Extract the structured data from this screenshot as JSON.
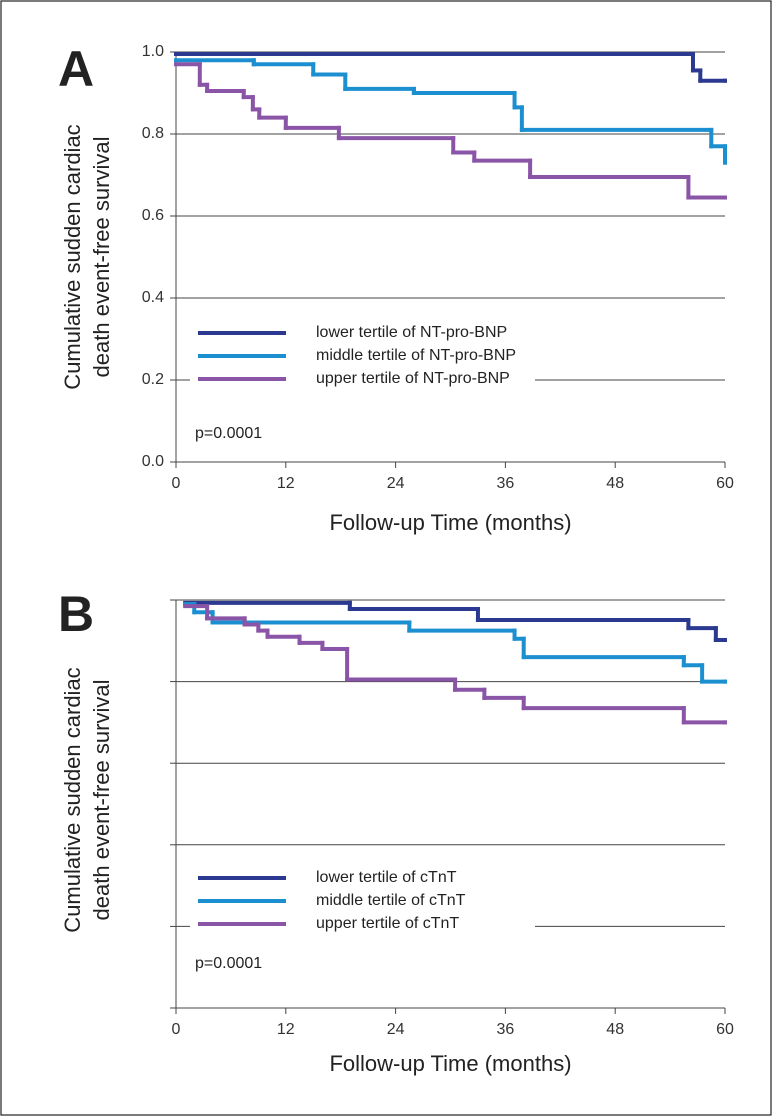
{
  "chart_data": [
    {
      "type": "step",
      "panel_label": "A",
      "ylabel": [
        "Cumulative sudden cardiac",
        "death event-free survival"
      ],
      "xlabel": "Follow-up Time (months)",
      "annotation": "p=0.0001",
      "xlim": [
        0,
        60
      ],
      "xticks": [
        0,
        12,
        24,
        36,
        48,
        60
      ],
      "ylim": [
        0,
        1
      ],
      "yticks": [
        {
          "value": 0,
          "label": "0.0"
        },
        0.2,
        0.4,
        0.6,
        0.8,
        {
          "value": 1,
          "label": "1.0"
        }
      ],
      "show_ytick_labels": true,
      "grid": true,
      "legend": "lower left",
      "series": [
        {
          "name": "lower tertile of NT-pro-BNP",
          "color": "#2b3990",
          "x": [
            0,
            56.5,
            57.3,
            60
          ],
          "values": [
            0.995,
            0.955,
            0.93,
            0.93
          ]
        },
        {
          "name": "middle tertile of NT-pro-BNP",
          "color": "#1b8fd0",
          "x": [
            0,
            8.5,
            15,
            18.5,
            26,
            37,
            37.8,
            58.5,
            60
          ],
          "values": [
            0.98,
            0.97,
            0.945,
            0.91,
            0.9,
            0.865,
            0.81,
            0.77,
            0.73
          ]
        },
        {
          "name": "upper tertile of NT-pro-BNP",
          "color": "#8b55a7",
          "x": [
            0,
            2.6,
            3.4,
            7.4,
            8.4,
            9.1,
            12,
            17.8,
            30.3,
            32.6,
            38.7,
            56,
            60
          ],
          "values": [
            0.97,
            0.92,
            0.905,
            0.89,
            0.86,
            0.84,
            0.815,
            0.79,
            0.755,
            0.735,
            0.695,
            0.645,
            0.645
          ]
        }
      ]
    },
    {
      "type": "step",
      "panel_label": "B",
      "ylabel": [
        "Cumulative sudden cardiac",
        "death event-free survival"
      ],
      "xlabel": "Follow-up Time (months)",
      "annotation": "p=0.0001",
      "xlim": [
        0,
        60
      ],
      "xticks": [
        0,
        12,
        24,
        36,
        48,
        60
      ],
      "ylim": [
        0,
        1
      ],
      "yticks": [
        0,
        0.2,
        0.4,
        0.6,
        0.8,
        1
      ],
      "show_ytick_labels": false,
      "grid": true,
      "legend": "lower left",
      "series": [
        {
          "name": "lower tertile of cTnT",
          "color": "#2b3990",
          "x": [
            1,
            19,
            33,
            56,
            59,
            60
          ],
          "values": [
            0.993,
            0.978,
            0.951,
            0.931,
            0.902,
            0.902
          ]
        },
        {
          "name": "middle tertile of cTnT",
          "color": "#1b8fd0",
          "x": [
            1,
            2,
            4,
            25.5,
            37,
            38,
            55.5,
            57.5,
            60
          ],
          "values": [
            0.99,
            0.97,
            0.945,
            0.925,
            0.905,
            0.86,
            0.84,
            0.8,
            0.8
          ]
        },
        {
          "name": "upper tertile of cTnT",
          "color": "#8b55a7",
          "x": [
            1,
            3.4,
            7.5,
            9,
            10,
            13.5,
            16,
            18.7,
            30.5,
            33.7,
            38,
            55.5,
            60
          ],
          "values": [
            0.985,
            0.955,
            0.94,
            0.925,
            0.91,
            0.895,
            0.88,
            0.805,
            0.78,
            0.76,
            0.735,
            0.7,
            0.7
          ]
        }
      ]
    }
  ]
}
